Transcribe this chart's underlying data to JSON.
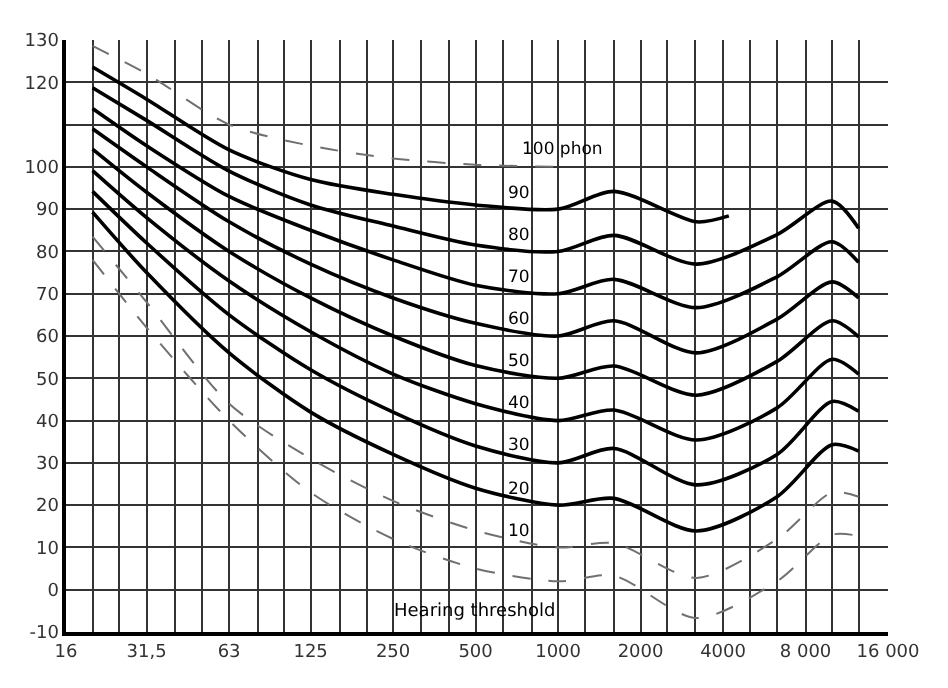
{
  "chart_data": {
    "type": "line",
    "x": [
      20,
      31.5,
      63,
      125,
      250,
      500,
      1000,
      1600,
      3200,
      6300,
      10000,
      12500
    ],
    "series": [
      {
        "name": "Hearing threshold",
        "color": "#707070",
        "line_style": "dashed",
        "values": [
          78,
          62,
          40,
          23,
          12,
          5,
          2,
          3.3,
          -6.7,
          2,
          13,
          12.7
        ]
      },
      {
        "name": "10",
        "color": "#707070",
        "line_style": "dashed",
        "values": [
          83.5,
          68,
          44,
          31,
          21,
          14,
          10,
          11,
          2.8,
          12,
          23,
          22
        ]
      },
      {
        "name": "20",
        "color": "#000000",
        "line_style": "solid",
        "values": [
          89.3,
          75,
          56,
          42,
          32,
          24,
          20,
          21.6,
          13.9,
          22,
          34.3,
          32.8
        ]
      },
      {
        "name": "30",
        "color": "#000000",
        "line_style": "solid",
        "values": [
          94.2,
          82,
          65,
          52,
          42,
          34,
          30,
          33.4,
          24.8,
          32,
          44.5,
          42.2
        ]
      },
      {
        "name": "40",
        "color": "#000000",
        "line_style": "solid",
        "values": [
          99.1,
          88,
          73,
          61,
          51,
          44,
          40,
          42.5,
          35.4,
          43,
          54.5,
          51
        ]
      },
      {
        "name": "50",
        "color": "#000000",
        "line_style": "solid",
        "values": [
          104.2,
          94,
          80,
          69,
          60,
          53,
          50,
          52.9,
          46,
          54,
          63.6,
          59.8
        ]
      },
      {
        "name": "60",
        "color": "#000000",
        "line_style": "solid",
        "values": [
          109,
          100,
          87,
          77,
          69,
          63,
          60,
          63.6,
          56,
          64,
          72.8,
          69
        ]
      },
      {
        "name": "70",
        "color": "#000000",
        "line_style": "solid",
        "values": [
          113.8,
          105,
          93,
          85,
          78,
          72,
          70,
          73.4,
          66.7,
          74,
          82.3,
          77.4
        ]
      },
      {
        "name": "80",
        "color": "#000000",
        "line_style": "solid",
        "values": [
          118.7,
          111,
          99,
          91,
          86,
          81.5,
          80,
          83.8,
          77,
          84,
          91.9,
          85.5
        ]
      },
      {
        "name": "90",
        "color": "#000000",
        "line_style": "solid",
        "x": [
          20,
          31.5,
          63,
          125,
          250,
          500,
          1000,
          1600,
          3200,
          4200
        ],
        "values": [
          123.6,
          116,
          104,
          97,
          93.5,
          91,
          90,
          94.2,
          87,
          88.4
        ]
      },
      {
        "name": "100 phon",
        "color": "#707070",
        "line_style": "dashed",
        "x": [
          20,
          31.5,
          63,
          125,
          250,
          500,
          1000
        ],
        "values": [
          128.6,
          122,
          110,
          105,
          102,
          100.5,
          100
        ]
      }
    ],
    "log": "x",
    "xlim": [
      16,
      16000
    ],
    "xticks": [
      16,
      {
        "value": 20,
        "label": null
      },
      {
        "value": 25,
        "label": null
      },
      {
        "value": 31.5,
        "label": "31,5"
      },
      {
        "value": 40,
        "label": null
      },
      {
        "value": 50,
        "label": null
      },
      63,
      {
        "value": 80,
        "label": null
      },
      {
        "value": 100,
        "label": null
      },
      125,
      {
        "value": 160,
        "label": null
      },
      {
        "value": 200,
        "label": null
      },
      250,
      {
        "value": 315,
        "label": null
      },
      {
        "value": 400,
        "label": null
      },
      500,
      {
        "value": 630,
        "label": null
      },
      {
        "value": 800,
        "label": null
      },
      1000,
      {
        "value": 1250,
        "label": null
      },
      {
        "value": 1600,
        "label": null
      },
      2000,
      {
        "value": 2500,
        "label": null
      },
      {
        "value": 3150,
        "label": null
      },
      4000,
      {
        "value": 5000,
        "label": null
      },
      {
        "value": 6300,
        "label": null
      },
      {
        "value": 8000,
        "label": "8 000"
      },
      {
        "value": 10000,
        "label": null
      },
      {
        "value": 12500,
        "label": null
      },
      {
        "value": 16000,
        "label": "16 000"
      }
    ],
    "ylim": [
      -10,
      130
    ],
    "yticks": [
      -10,
      0,
      10,
      20,
      30,
      40,
      50,
      60,
      70,
      80,
      90,
      100,
      {
        "value": 110,
        "label": null
      },
      120,
      130
    ],
    "grid": true,
    "legend": false
  }
}
